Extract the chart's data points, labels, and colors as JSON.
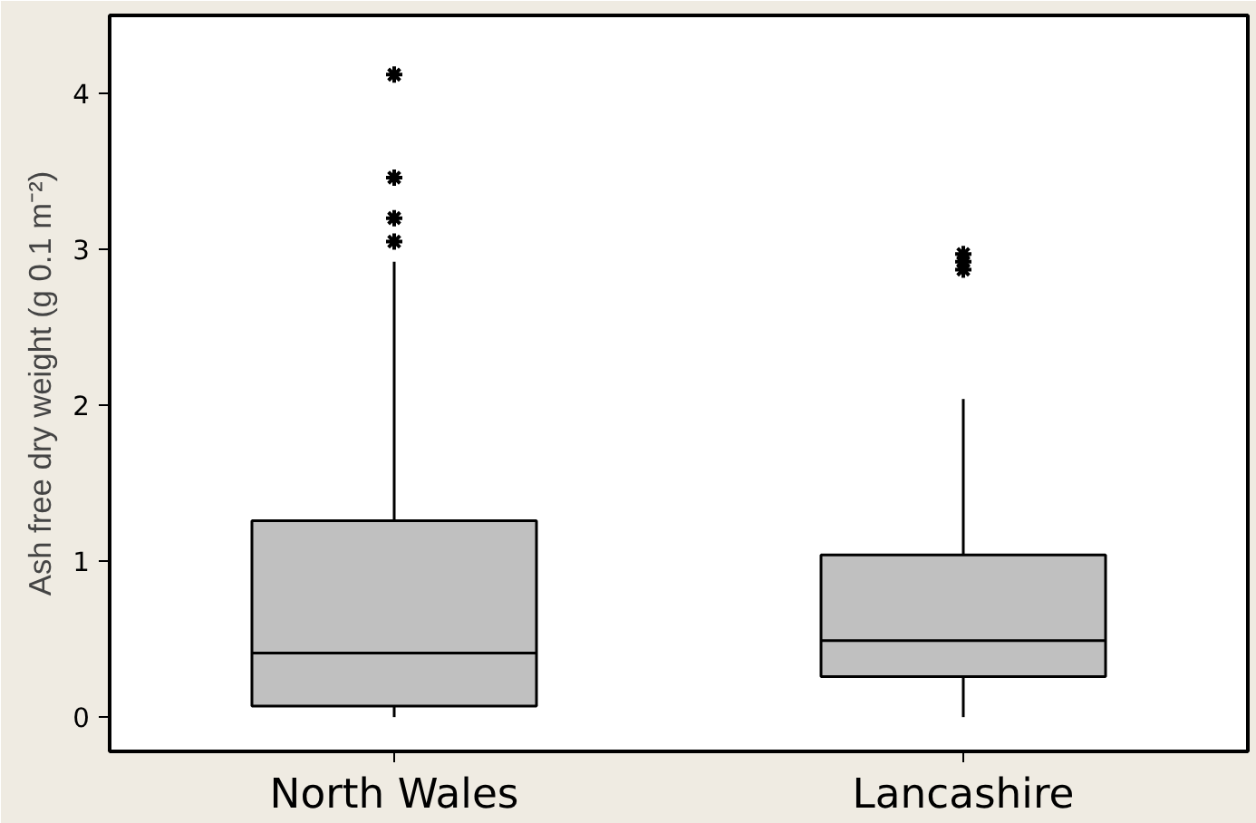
{
  "chart_data": {
    "type": "box",
    "ylabel": "Ash free dry weight (g 0.1 m⁻²)",
    "categories": [
      "North Wales",
      "Lancashire"
    ],
    "color": "#c0c0c0",
    "boxes": [
      {
        "low": 0,
        "q1": 0.07,
        "median": 0.41,
        "q3": 1.26,
        "high": 2.92,
        "outliers": [
          4.12,
          3.46,
          3.2,
          3.05
        ]
      },
      {
        "low": 0,
        "q1": 0.26,
        "median": 0.49,
        "q3": 1.04,
        "high": 2.04,
        "outliers": [
          2.97,
          2.92,
          2.87
        ]
      }
    ],
    "ylim": [
      -0.22,
      4.5
    ],
    "yticks": [
      0,
      1,
      2,
      3,
      4
    ],
    "grid": false
  }
}
